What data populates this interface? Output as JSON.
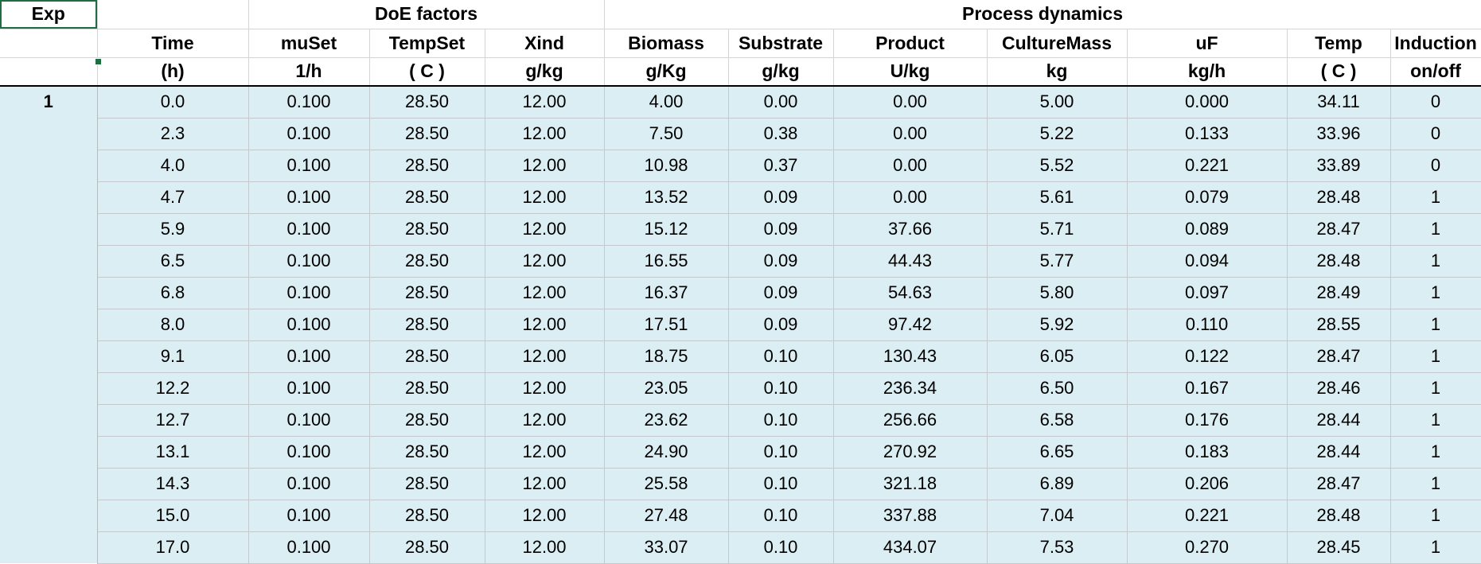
{
  "header": {
    "exp_label": "Exp",
    "groups": {
      "doe": "DoE factors",
      "process": "Process dynamics"
    },
    "columns": [
      {
        "name": "Time",
        "unit": "(h)"
      },
      {
        "name": "muSet",
        "unit": "1/h"
      },
      {
        "name": "TempSet",
        "unit": "( C )"
      },
      {
        "name": "Xind",
        "unit": "g/kg"
      },
      {
        "name": "Biomass",
        "unit": "g/Kg"
      },
      {
        "name": "Substrate",
        "unit": "g/kg"
      },
      {
        "name": "Product",
        "unit": "U/kg"
      },
      {
        "name": "CultureMass",
        "unit": "kg"
      },
      {
        "name": "uF",
        "unit": "kg/h"
      },
      {
        "name": "Temp",
        "unit": "( C )"
      },
      {
        "name": "Induction",
        "unit": "on/off"
      }
    ]
  },
  "experiment": "1",
  "rows": [
    [
      "0.0",
      "0.100",
      "28.50",
      "12.00",
      "4.00",
      "0.00",
      "0.00",
      "5.00",
      "0.000",
      "34.11",
      "0"
    ],
    [
      "2.3",
      "0.100",
      "28.50",
      "12.00",
      "7.50",
      "0.38",
      "0.00",
      "5.22",
      "0.133",
      "33.96",
      "0"
    ],
    [
      "4.0",
      "0.100",
      "28.50",
      "12.00",
      "10.98",
      "0.37",
      "0.00",
      "5.52",
      "0.221",
      "33.89",
      "0"
    ],
    [
      "4.7",
      "0.100",
      "28.50",
      "12.00",
      "13.52",
      "0.09",
      "0.00",
      "5.61",
      "0.079",
      "28.48",
      "1"
    ],
    [
      "5.9",
      "0.100",
      "28.50",
      "12.00",
      "15.12",
      "0.09",
      "37.66",
      "5.71",
      "0.089",
      "28.47",
      "1"
    ],
    [
      "6.5",
      "0.100",
      "28.50",
      "12.00",
      "16.55",
      "0.09",
      "44.43",
      "5.77",
      "0.094",
      "28.48",
      "1"
    ],
    [
      "6.8",
      "0.100",
      "28.50",
      "12.00",
      "16.37",
      "0.09",
      "54.63",
      "5.80",
      "0.097",
      "28.49",
      "1"
    ],
    [
      "8.0",
      "0.100",
      "28.50",
      "12.00",
      "17.51",
      "0.09",
      "97.42",
      "5.92",
      "0.110",
      "28.55",
      "1"
    ],
    [
      "9.1",
      "0.100",
      "28.50",
      "12.00",
      "18.75",
      "0.10",
      "130.43",
      "6.05",
      "0.122",
      "28.47",
      "1"
    ],
    [
      "12.2",
      "0.100",
      "28.50",
      "12.00",
      "23.05",
      "0.10",
      "236.34",
      "6.50",
      "0.167",
      "28.46",
      "1"
    ],
    [
      "12.7",
      "0.100",
      "28.50",
      "12.00",
      "23.62",
      "0.10",
      "256.66",
      "6.58",
      "0.176",
      "28.44",
      "1"
    ],
    [
      "13.1",
      "0.100",
      "28.50",
      "12.00",
      "24.90",
      "0.10",
      "270.92",
      "6.65",
      "0.183",
      "28.44",
      "1"
    ],
    [
      "14.3",
      "0.100",
      "28.50",
      "12.00",
      "25.58",
      "0.10",
      "321.18",
      "6.89",
      "0.206",
      "28.47",
      "1"
    ],
    [
      "15.0",
      "0.100",
      "28.50",
      "12.00",
      "27.48",
      "0.10",
      "337.88",
      "7.04",
      "0.221",
      "28.48",
      "1"
    ],
    [
      "17.0",
      "0.100",
      "28.50",
      "12.00",
      "33.07",
      "0.10",
      "434.07",
      "7.53",
      "0.270",
      "28.45",
      "1"
    ]
  ]
}
